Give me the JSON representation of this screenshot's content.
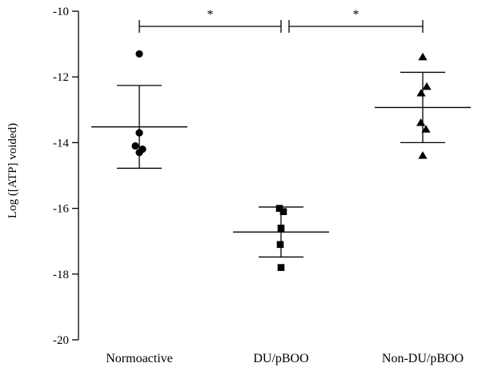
{
  "chart_data": {
    "type": "scatter",
    "title": "",
    "xlabel": "",
    "ylabel": "Log ([ATP] voided)",
    "ylim": [
      -20,
      -10
    ],
    "yticks": [
      -20,
      -18,
      -16,
      -14,
      -12,
      -10
    ],
    "ytick_labels": [
      "-20",
      "-18",
      "-16",
      "-14",
      "-12",
      "-10"
    ],
    "grid": false,
    "legend": "none",
    "categories": [
      "Normoactive",
      "DU/pBOO",
      "Non-DU/pBOO"
    ],
    "series": [
      {
        "category": "Normoactive",
        "marker": "circle",
        "values": [
          -11.3,
          -13.7,
          -14.1,
          -14.2,
          -14.3
        ],
        "x_offsets": [
          0.0,
          0.0,
          -0.25,
          0.2,
          0.0
        ],
        "mean": -13.52,
        "sd": 1.26
      },
      {
        "category": "DU/pBOO",
        "marker": "square",
        "values": [
          -16.0,
          -16.1,
          -16.6,
          -17.1,
          -17.8
        ],
        "x_offsets": [
          -0.1,
          0.15,
          0.0,
          -0.05,
          0.0
        ],
        "mean": -16.72,
        "sd": 0.76
      },
      {
        "category": "Non-DU/pBOO",
        "marker": "triangle",
        "values": [
          -11.4,
          -12.3,
          -12.5,
          -13.4,
          -13.6,
          -14.4
        ],
        "x_offsets": [
          0.0,
          0.25,
          -0.1,
          -0.12,
          0.2,
          0.0
        ],
        "mean": -12.93,
        "sd": 1.07
      }
    ],
    "significance": [
      {
        "from": "Normoactive",
        "to": "DU/pBOO",
        "label": "*"
      },
      {
        "from": "DU/pBOO",
        "to": "Non-DU/pBOO",
        "label": "*"
      }
    ],
    "colors": {
      "marker": "#000000",
      "line": "#000000"
    }
  }
}
